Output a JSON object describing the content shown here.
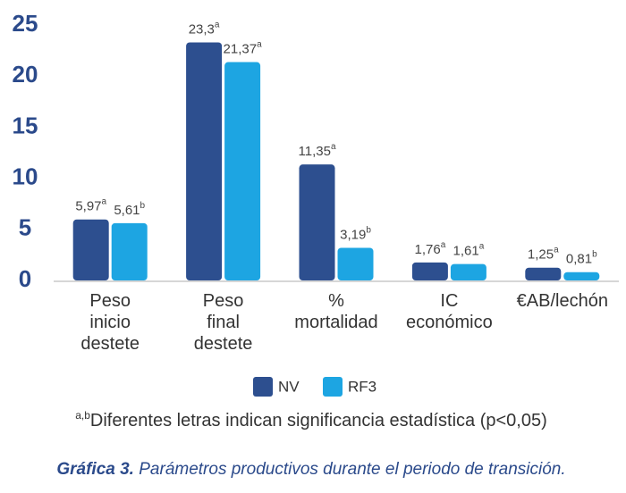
{
  "chart_data": {
    "type": "bar",
    "categories": [
      "Peso inicio destete",
      "Peso final destete",
      "% mortalidad",
      "IC económico",
      "€AB/lechón"
    ],
    "series": [
      {
        "name": "NV",
        "color": "#2d4f8f",
        "values": [
          5.97,
          23.3,
          11.35,
          1.76,
          1.25
        ],
        "value_labels": [
          "5,97",
          "23,3",
          "11,35",
          "1,76",
          "1,25"
        ],
        "significance": [
          "a",
          "a",
          "a",
          "a",
          "a"
        ]
      },
      {
        "name": "RF3",
        "color": "#1da5e2",
        "values": [
          5.61,
          21.37,
          3.19,
          1.61,
          0.81
        ],
        "value_labels": [
          "5,61",
          "21,37",
          "3,19",
          "1,61",
          "0,81"
        ],
        "significance": [
          "b",
          "a",
          "b",
          "a",
          "b"
        ]
      }
    ],
    "ylim": [
      0,
      25
    ],
    "yticks": [
      0,
      5,
      10,
      15,
      20,
      25
    ],
    "grid": false,
    "footnote": {
      "superscript": "a,b",
      "text": "Diferentes letras indican significancia estadística (p<0,05)"
    },
    "caption": {
      "label": "Gráfica 3.",
      "text": "Parámetros productivos durante el periodo de transición."
    }
  }
}
